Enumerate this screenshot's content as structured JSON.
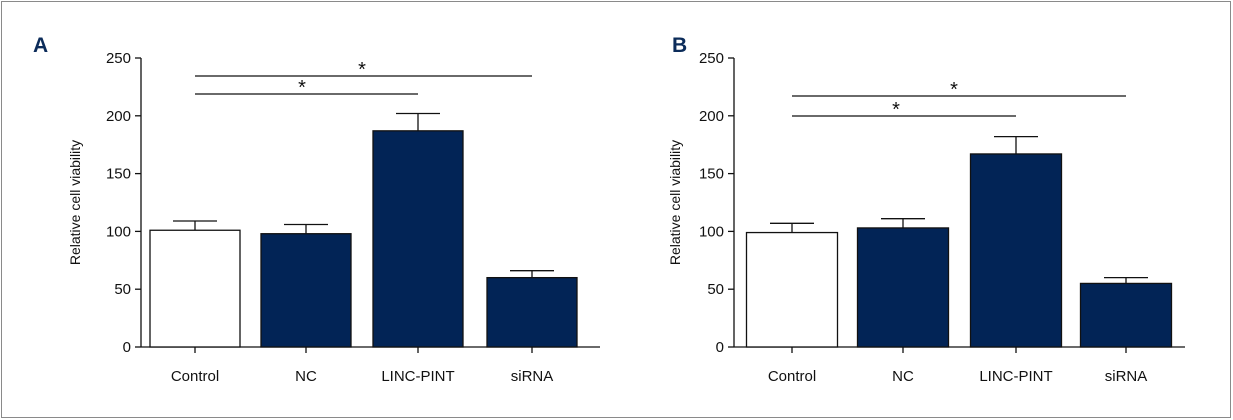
{
  "colors": {
    "filled_bar": "#022456",
    "control_bar": "#ffffff",
    "axis": "#111111",
    "panel_letter": "#0c2c5a"
  },
  "chart_data": [
    {
      "type": "bar",
      "panel": "A",
      "categories": [
        "Control",
        "NC",
        "LINC-PINT",
        "siRNA"
      ],
      "values": [
        101,
        98,
        187,
        60
      ],
      "errors": [
        8,
        8,
        15,
        6
      ],
      "bar_fill": [
        "white",
        "navy",
        "navy",
        "navy"
      ],
      "ylabel": "Relative cell viability",
      "ylim": [
        0,
        250
      ],
      "yticks": [
        "0",
        "50",
        "100",
        "150",
        "200",
        "250"
      ],
      "grid": false,
      "significance": [
        {
          "from": 0,
          "to": 2,
          "label": "*"
        },
        {
          "from": 0,
          "to": 3,
          "label": "*"
        }
      ]
    },
    {
      "type": "bar",
      "panel": "B",
      "categories": [
        "Control",
        "NC",
        "LINC-PINT",
        "siRNA"
      ],
      "values": [
        99,
        103,
        167,
        55
      ],
      "errors": [
        8,
        8,
        15,
        5
      ],
      "bar_fill": [
        "white",
        "navy",
        "navy",
        "navy"
      ],
      "ylabel": "Relative cell viability",
      "ylim": [
        0,
        250
      ],
      "yticks": [
        "0",
        "50",
        "100",
        "150",
        "200",
        "250"
      ],
      "grid": false,
      "significance": [
        {
          "from": 0,
          "to": 2,
          "label": "*"
        },
        {
          "from": 0,
          "to": 3,
          "label": "*"
        }
      ]
    }
  ]
}
